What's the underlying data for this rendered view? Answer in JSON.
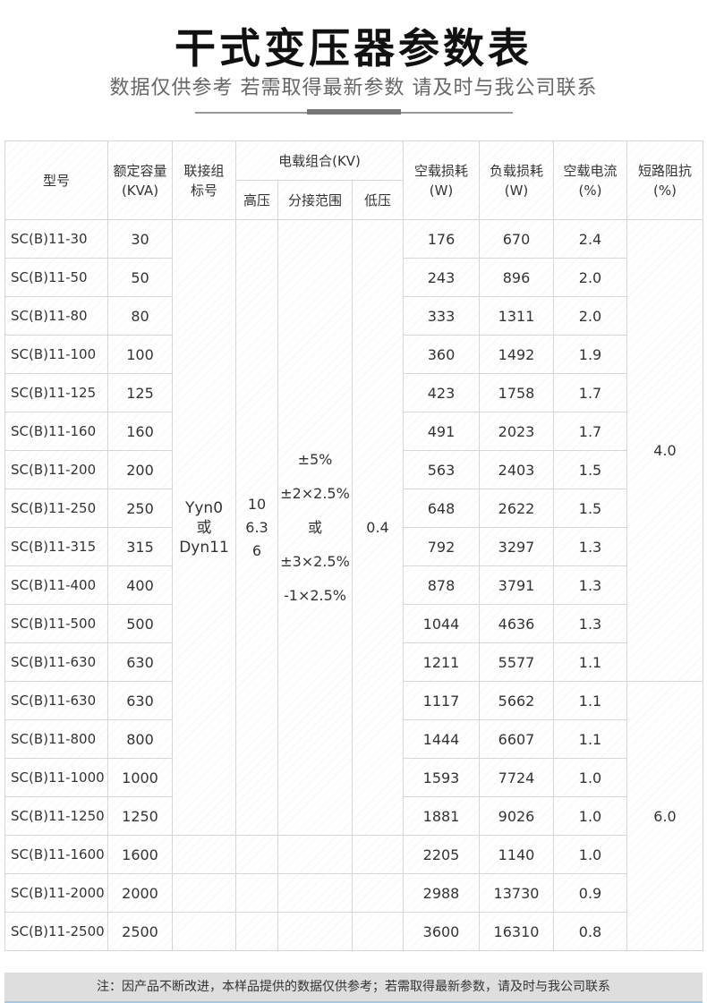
{
  "title": "干式变压器参数表",
  "subtitle": "数据仅供参考 若需取得最新参数 请及时与我公司联系",
  "headers": {
    "model": "型号",
    "capacity": "额定容量",
    "capacity_unit": "(KVA)",
    "group": "联接组",
    "group2": "标号",
    "voltage": "电载组合(KV)",
    "hv": "高压",
    "tap": "分接范围",
    "lv": "低压",
    "noload_loss": "空载损耗",
    "noload_unit": "(W)",
    "load_loss": "负载损耗",
    "load_unit": "(W)",
    "noload_current": "空载电流",
    "current_unit": "(%)",
    "impedance": "短路阻抗",
    "impedance_unit": "(%)"
  },
  "merged": {
    "group_l1": "Yyn0",
    "group_l2": "或",
    "group_l3": "Dyn11",
    "hv_l1": "10",
    "hv_l2": "6.3",
    "hv_l3": "6",
    "tap_l1": "±5%",
    "tap_l2": "±2×2.5%",
    "tap_l3": "或",
    "tap_l4": "±3×2.5%",
    "tap_l5": "-1×2.5%",
    "lv": "0.4",
    "imp_a": "4.0",
    "imp_b": "6.0"
  },
  "rows": [
    [
      "SC(B)11-30",
      "30",
      "176",
      "670",
      "2.4"
    ],
    [
      "SC(B)11-50",
      "50",
      "243",
      "896",
      "2.0"
    ],
    [
      "SC(B)11-80",
      "80",
      "333",
      "1311",
      "2.0"
    ],
    [
      "SC(B)11-100",
      "100",
      "360",
      "1492",
      "1.9"
    ],
    [
      "SC(B)11-125",
      "125",
      "423",
      "1758",
      "1.7"
    ],
    [
      "SC(B)11-160",
      "160",
      "491",
      "2023",
      "1.7"
    ],
    [
      "SC(B)11-200",
      "200",
      "563",
      "2403",
      "1.5"
    ],
    [
      "SC(B)11-250",
      "250",
      "648",
      "2622",
      "1.5"
    ],
    [
      "SC(B)11-315",
      "315",
      "792",
      "3297",
      "1.3"
    ],
    [
      "SC(B)11-400",
      "400",
      "878",
      "3791",
      "1.3"
    ],
    [
      "SC(B)11-500",
      "500",
      "1044",
      "4636",
      "1.3"
    ],
    [
      "SC(B)11-630",
      "630",
      "1211",
      "5577",
      "1.1"
    ],
    [
      "SC(B)11-630",
      "630",
      "1117",
      "5662",
      "1.1"
    ],
    [
      "SC(B)11-800",
      "800",
      "1444",
      "6607",
      "1.1"
    ],
    [
      "SC(B)11-1000",
      "1000",
      "1593",
      "7724",
      "1.0"
    ],
    [
      "SC(B)11-1250",
      "1250",
      "1881",
      "9026",
      "1.0"
    ],
    [
      "SC(B)11-1600",
      "1600",
      "2205",
      "1140",
      "1.0"
    ],
    [
      "SC(B)11-2000",
      "2000",
      "2988",
      "13730",
      "0.9"
    ],
    [
      "SC(B)11-2500",
      "2500",
      "3600",
      "16310",
      "0.8"
    ]
  ],
  "note": "注：因产品不断改进，本样品提供的数据仅供参考；若需取得最新参数，请及时与我公司联系"
}
